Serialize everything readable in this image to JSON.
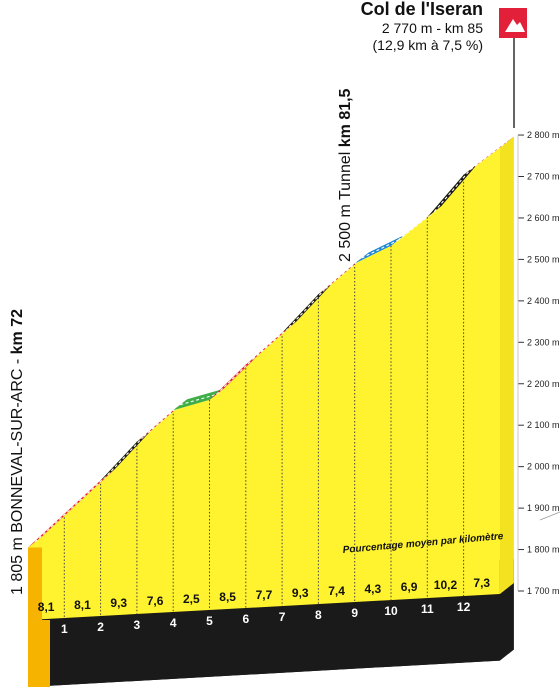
{
  "summit": {
    "name": "Col de l'Iseran",
    "line1": "2 770 m - km 85",
    "line2": "(12,9 km à 7,5 %)",
    "icon": "mountain-icon",
    "icon_color": "#e3203a"
  },
  "start_label": {
    "prefix": "1 805 m BONNEVAL-SUR-ARC - ",
    "km": "km 72"
  },
  "tunnel_label": {
    "prefix": "2 500 m Tunnel ",
    "km": "km 81,5"
  },
  "annotation": "Pourcentage moyen par kilomètre",
  "colors": {
    "fill": "#fff22e",
    "base": "#f6b400",
    "ground": "#1a1a1a",
    "strip_red": "#e3203a",
    "strip_black": "#1a1a1a",
    "strip_green": "#3fae49",
    "strip_blue": "#1e88d2"
  },
  "chart_data": {
    "type": "area",
    "xlabel": "",
    "ylabel": "",
    "ylim": [
      1700,
      2800
    ],
    "yticks": [
      {
        "value": 1700,
        "label": "1 700 m"
      },
      {
        "value": 1800,
        "label": "1 800 m"
      },
      {
        "value": 1900,
        "label": "1 900 m"
      },
      {
        "value": 2000,
        "label": "2 000 m"
      },
      {
        "value": 2100,
        "label": "2 100 m"
      },
      {
        "value": 2200,
        "label": "2 200 m"
      },
      {
        "value": 2300,
        "label": "2 300 m"
      },
      {
        "value": 2400,
        "label": "2 400 m"
      },
      {
        "value": 2500,
        "label": "2 500 m"
      },
      {
        "value": 2600,
        "label": "2 600 m"
      },
      {
        "value": 2700,
        "label": "2 700 m"
      },
      {
        "value": 2800,
        "label": "2 800 m"
      }
    ],
    "km": [
      "1",
      "2",
      "3",
      "4",
      "5",
      "6",
      "7",
      "8",
      "9",
      "10",
      "11",
      "12"
    ],
    "gradients": [
      "8,1",
      "8,1",
      "9,3",
      "7,6",
      "2,5",
      "8,5",
      "7,7",
      "9,3",
      "7,4",
      "4,3",
      "6,9",
      "10,2",
      "7,3"
    ],
    "altitudes": [
      1805,
      1886,
      1967,
      2060,
      2136,
      2161,
      2246,
      2323,
      2416,
      2490,
      2533,
      2602,
      2704,
      2770
    ],
    "strip_colors": [
      "red",
      "red",
      "black",
      "red",
      "green",
      "red",
      "red",
      "black",
      "red",
      "blue",
      "red",
      "black",
      "red"
    ]
  }
}
